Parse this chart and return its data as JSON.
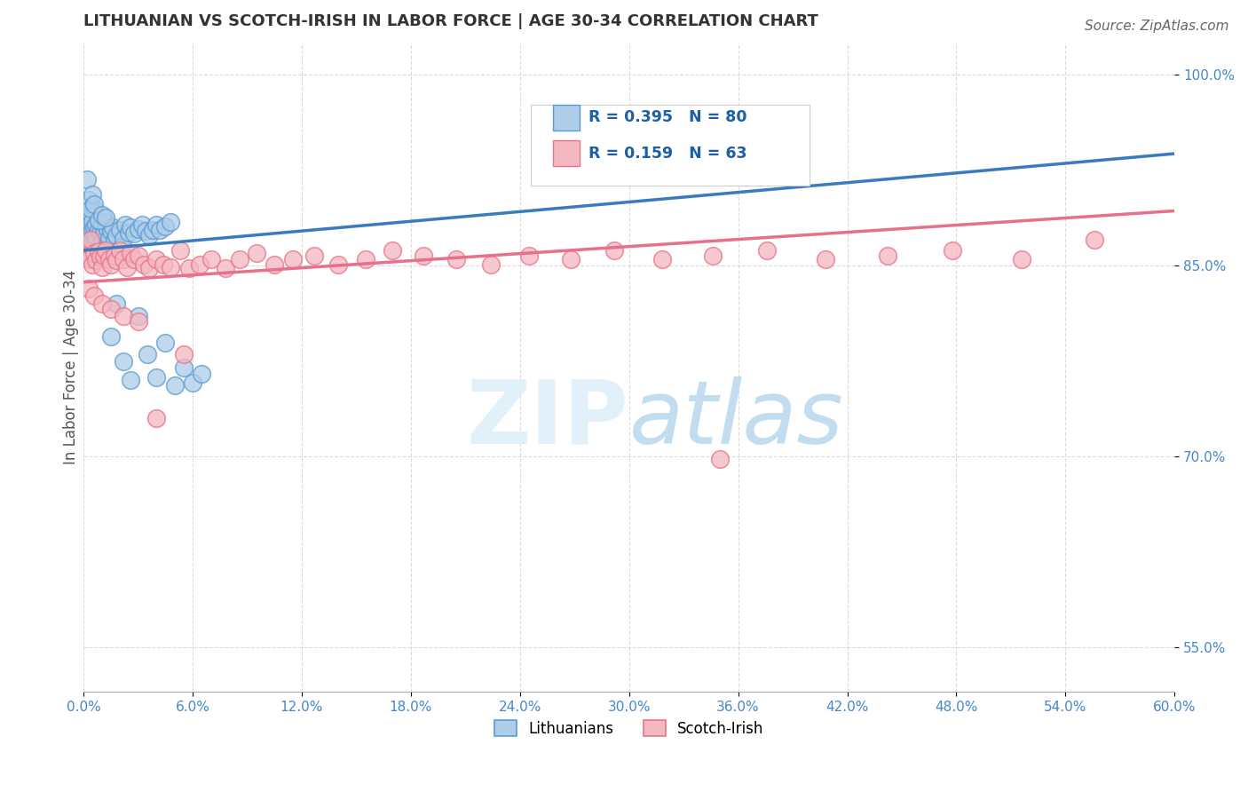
{
  "title": "LITHUANIAN VS SCOTCH-IRISH IN LABOR FORCE | AGE 30-34 CORRELATION CHART",
  "source_text": "Source: ZipAtlas.com",
  "ylabel": "In Labor Force | Age 30-34",
  "watermark_zip": "ZIP",
  "watermark_atlas": "atlas",
  "xlim": [
    0.0,
    0.6
  ],
  "ylim": [
    0.515,
    1.025
  ],
  "xticks": [
    0.0,
    0.06,
    0.12,
    0.18,
    0.24,
    0.3,
    0.36,
    0.42,
    0.48,
    0.54,
    0.6
  ],
  "ytick_positions": [
    0.55,
    0.7,
    0.85,
    1.0
  ],
  "ytick_labels": [
    "55.0%",
    "70.0%",
    "85.0%",
    "100.0%"
  ],
  "legend_blue_label": "Lithuanians",
  "legend_pink_label": "Scotch-Irish",
  "r_blue": 0.395,
  "n_blue": 80,
  "r_pink": 0.159,
  "n_pink": 63,
  "blue_color": "#aecde8",
  "blue_edge": "#5b9bd5",
  "pink_color": "#f4b8c1",
  "pink_edge": "#e8748a",
  "line_blue": "#3a7bbf",
  "line_pink": "#e8708a",
  "background": "#ffffff",
  "grid_color": "#cccccc",
  "title_color": "#333333",
  "tick_color": "#4488cc",
  "blue_x": [
    0.001,
    0.001,
    0.002,
    0.002,
    0.002,
    0.002,
    0.002,
    0.003,
    0.003,
    0.003,
    0.003,
    0.003,
    0.003,
    0.004,
    0.004,
    0.004,
    0.004,
    0.004,
    0.005,
    0.005,
    0.005,
    0.005,
    0.006,
    0.006,
    0.006,
    0.006,
    0.007,
    0.007,
    0.007,
    0.008,
    0.008,
    0.009,
    0.009,
    0.01,
    0.01,
    0.011,
    0.012,
    0.012,
    0.013,
    0.014,
    0.015,
    0.016,
    0.017,
    0.018,
    0.02,
    0.021,
    0.022,
    0.023,
    0.025,
    0.026,
    0.028,
    0.03,
    0.032,
    0.034,
    0.036,
    0.038,
    0.04,
    0.042,
    0.045,
    0.048,
    0.002,
    0.003,
    0.004,
    0.005,
    0.006,
    0.008,
    0.01,
    0.012,
    0.015,
    0.018,
    0.022,
    0.026,
    0.03,
    0.035,
    0.04,
    0.045,
    0.05,
    0.055,
    0.06,
    0.065
  ],
  "blue_y": [
    0.883,
    0.876,
    0.879,
    0.872,
    0.868,
    0.893,
    0.86,
    0.875,
    0.887,
    0.865,
    0.892,
    0.878,
    0.856,
    0.883,
    0.869,
    0.876,
    0.862,
    0.891,
    0.871,
    0.878,
    0.885,
    0.861,
    0.874,
    0.88,
    0.867,
    0.895,
    0.873,
    0.882,
    0.857,
    0.878,
    0.865,
    0.876,
    0.858,
    0.883,
    0.869,
    0.876,
    0.884,
    0.862,
    0.879,
    0.872,
    0.877,
    0.88,
    0.87,
    0.874,
    0.878,
    0.865,
    0.871,
    0.882,
    0.876,
    0.88,
    0.875,
    0.879,
    0.882,
    0.877,
    0.874,
    0.878,
    0.882,
    0.878,
    0.881,
    0.884,
    0.918,
    0.902,
    0.895,
    0.906,
    0.898,
    0.886,
    0.89,
    0.888,
    0.794,
    0.82,
    0.775,
    0.76,
    0.81,
    0.78,
    0.762,
    0.789,
    0.756,
    0.77,
    0.758,
    0.765
  ],
  "pink_x": [
    0.001,
    0.002,
    0.003,
    0.004,
    0.005,
    0.006,
    0.007,
    0.008,
    0.009,
    0.01,
    0.011,
    0.012,
    0.014,
    0.015,
    0.017,
    0.018,
    0.02,
    0.022,
    0.024,
    0.026,
    0.028,
    0.03,
    0.033,
    0.036,
    0.04,
    0.044,
    0.048,
    0.053,
    0.058,
    0.064,
    0.07,
    0.078,
    0.086,
    0.095,
    0.105,
    0.115,
    0.127,
    0.14,
    0.155,
    0.17,
    0.187,
    0.205,
    0.224,
    0.245,
    0.268,
    0.292,
    0.318,
    0.346,
    0.376,
    0.408,
    0.442,
    0.478,
    0.516,
    0.556,
    0.003,
    0.006,
    0.01,
    0.015,
    0.022,
    0.03,
    0.04,
    0.055,
    0.35
  ],
  "pink_y": [
    0.862,
    0.858,
    0.855,
    0.87,
    0.851,
    0.86,
    0.854,
    0.861,
    0.857,
    0.849,
    0.858,
    0.862,
    0.855,
    0.851,
    0.858,
    0.854,
    0.862,
    0.855,
    0.849,
    0.86,
    0.855,
    0.858,
    0.851,
    0.848,
    0.855,
    0.851,
    0.849,
    0.862,
    0.848,
    0.851,
    0.855,
    0.848,
    0.855,
    0.86,
    0.851,
    0.855,
    0.858,
    0.851,
    0.855,
    0.862,
    0.858,
    0.855,
    0.851,
    0.858,
    0.855,
    0.862,
    0.855,
    0.858,
    0.862,
    0.855,
    0.858,
    0.862,
    0.855,
    0.87,
    0.832,
    0.826,
    0.82,
    0.816,
    0.81,
    0.806,
    0.73,
    0.78,
    0.698
  ],
  "blue_trendline_x": [
    0.0,
    0.6
  ],
  "blue_trendline_y": [
    0.862,
    0.938
  ],
  "pink_trendline_x": [
    0.0,
    0.6
  ],
  "pink_trendline_y": [
    0.837,
    0.893
  ]
}
